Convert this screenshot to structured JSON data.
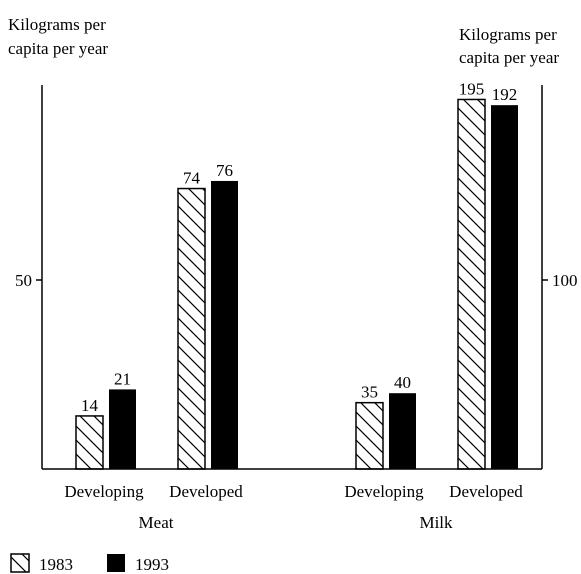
{
  "chart_data": {
    "type": "bar",
    "left_axis_title": [
      "Kilograms per",
      "capita per year"
    ],
    "right_axis_title": [
      "Kilograms per",
      "capita per year"
    ],
    "left_axis": {
      "ylim": [
        0,
        100
      ],
      "ticks": [
        50
      ],
      "applies_to": "Meat"
    },
    "right_axis": {
      "ylim": [
        0,
        200
      ],
      "ticks": [
        100
      ],
      "applies_to": "Milk"
    },
    "groups": [
      {
        "name": "Meat",
        "axis": "left",
        "categories": [
          "Developing",
          "Developed"
        ],
        "series": [
          {
            "name": "1983",
            "values": [
              14,
              74
            ]
          },
          {
            "name": "1993",
            "values": [
              21,
              76
            ]
          }
        ]
      },
      {
        "name": "Milk",
        "axis": "right",
        "categories": [
          "Developing",
          "Developed"
        ],
        "series": [
          {
            "name": "1983",
            "values": [
              35,
              195
            ]
          },
          {
            "name": "1993",
            "values": [
              40,
              192
            ]
          }
        ]
      }
    ],
    "legend": {
      "placement": "bottom-left",
      "items": [
        {
          "label": "1983",
          "style": "hatched"
        },
        {
          "label": "1993",
          "style": "solid"
        }
      ]
    },
    "colors": {
      "solid": "#000000",
      "hatch": "#000000",
      "background": "#ffffff"
    },
    "grid": false
  }
}
